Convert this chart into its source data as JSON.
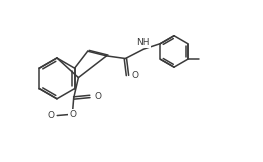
{
  "bg_color": "#ffffff",
  "line_color": "#3a3a3a",
  "line_width": 1.1,
  "font_size": 6.5,
  "figsize": [
    2.63,
    1.62
  ],
  "dpi": 100,
  "xlim": [
    0,
    10
  ],
  "ylim": [
    0,
    6
  ]
}
